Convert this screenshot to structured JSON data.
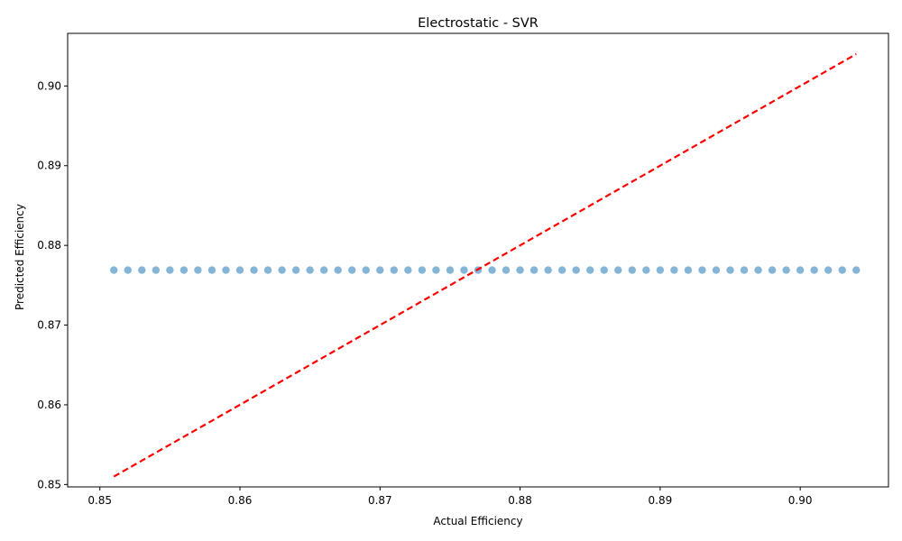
{
  "chart_data": {
    "type": "scatter",
    "title": "Electrostatic - SVR",
    "xlabel": "Actual Efficiency",
    "ylabel": "Predicted Efficiency",
    "xlim": [
      0.8477,
      0.9063
    ],
    "ylim": [
      0.8497,
      0.9066
    ],
    "xticks": [
      "0.85",
      "0.86",
      "0.87",
      "0.88",
      "0.89",
      "0.90"
    ],
    "yticks": [
      "0.85",
      "0.86",
      "0.87",
      "0.88",
      "0.89",
      "0.90"
    ],
    "grid": false,
    "legend": "none",
    "series": [
      {
        "kind": "points",
        "color": "#1f77b4",
        "x": [
          0.851,
          0.852,
          0.853,
          0.854,
          0.855,
          0.856,
          0.857,
          0.858,
          0.859,
          0.86,
          0.861,
          0.862,
          0.863,
          0.864,
          0.865,
          0.866,
          0.867,
          0.868,
          0.869,
          0.87,
          0.871,
          0.872,
          0.873,
          0.874,
          0.875,
          0.876,
          0.877,
          0.878,
          0.879,
          0.88,
          0.881,
          0.882,
          0.883,
          0.884,
          0.885,
          0.886,
          0.887,
          0.888,
          0.889,
          0.89,
          0.891,
          0.892,
          0.893,
          0.894,
          0.895,
          0.896,
          0.897,
          0.898,
          0.899,
          0.9,
          0.901,
          0.902,
          0.903,
          0.904
        ],
        "y": 0.8769
      },
      {
        "kind": "reference-line",
        "style": "dashed",
        "color": "#ff0000",
        "x": [
          0.851,
          0.904
        ],
        "y": [
          0.851,
          0.904
        ]
      }
    ]
  }
}
